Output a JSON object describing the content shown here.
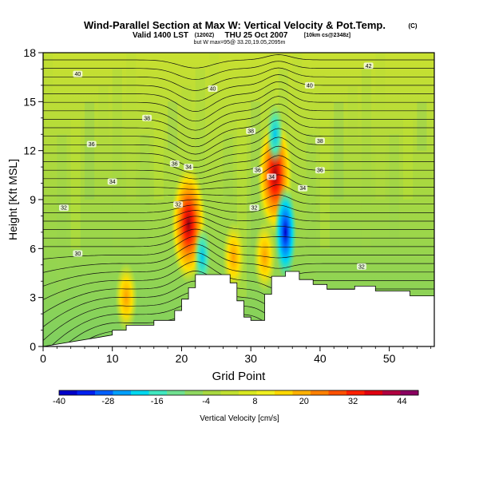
{
  "header": {
    "title": "Wind-Parallel Section at Max W: Vertical Velocity & Pot.Temp.",
    "title_mark": "(C)",
    "valid_line": "Valid 1400 LST",
    "valid_utc": "(1200Z)",
    "valid_date": "THU 25 Oct 2007",
    "valid_run": "[10km cs@2348z]",
    "sub_line": "but W max=95@ 33.20,19.05,2095m"
  },
  "chart_data": {
    "type": "heatmap",
    "xlabel": "Grid Point",
    "ylabel": "Height [Kft MSL]",
    "xlim": [
      0,
      56.5
    ],
    "ylim": [
      0,
      18
    ],
    "xticks": [
      0,
      10,
      20,
      30,
      40,
      50
    ],
    "yticks": [
      0,
      3,
      6,
      9,
      12,
      15,
      18
    ],
    "colorbar": {
      "label": "Vertical Velocity [cm/s]",
      "range": [
        -40,
        48
      ],
      "tick_values": [
        -40,
        -28,
        -16,
        -4,
        8,
        20,
        32,
        44
      ],
      "tick_labels": [
        "-40",
        "-28",
        "-16",
        "-4",
        "8",
        "20",
        "32",
        "44"
      ],
      "colors": [
        "#0000c8",
        "#0020f0",
        "#0060ff",
        "#00a0ff",
        "#00d8f0",
        "#40e8c0",
        "#70e090",
        "#90d860",
        "#a8d840",
        "#c0e030",
        "#d8e820",
        "#f0f020",
        "#ffd800",
        "#ffb000",
        "#ff8000",
        "#ff5000",
        "#ff2000",
        "#e00010",
        "#b00040",
        "#8a0060"
      ]
    },
    "terrain": [
      [
        0,
        0
      ],
      [
        10,
        0.7
      ],
      [
        10,
        1
      ],
      [
        12,
        1
      ],
      [
        12,
        1.3
      ],
      [
        16,
        1.3
      ],
      [
        16,
        1.6
      ],
      [
        19,
        1.6
      ],
      [
        19,
        2.2
      ],
      [
        20,
        2.2
      ],
      [
        20,
        2.9
      ],
      [
        21,
        2.9
      ],
      [
        21,
        3.6
      ],
      [
        22,
        3.6
      ],
      [
        22,
        4.4
      ],
      [
        27,
        4.4
      ],
      [
        27,
        3.9
      ],
      [
        28,
        3.9
      ],
      [
        28,
        2.8
      ],
      [
        29,
        2.8
      ],
      [
        29,
        1.8
      ],
      [
        30,
        1.8
      ],
      [
        30,
        1.6
      ],
      [
        32,
        1.6
      ],
      [
        32,
        3.2
      ],
      [
        33,
        3.2
      ],
      [
        33,
        4.3
      ],
      [
        35,
        4.3
      ],
      [
        35,
        4.6
      ],
      [
        37,
        4.6
      ],
      [
        37,
        4.1
      ],
      [
        39,
        4.1
      ],
      [
        39,
        3.8
      ],
      [
        41,
        3.8
      ],
      [
        41,
        3.5
      ],
      [
        45,
        3.5
      ],
      [
        45,
        3.7
      ],
      [
        48,
        3.7
      ],
      [
        48,
        3.4
      ],
      [
        53,
        3.4
      ],
      [
        53,
        3.1
      ],
      [
        56.5,
        3.1
      ]
    ],
    "updrafts": [
      {
        "x": 21,
        "y": 7.5,
        "value": 44
      },
      {
        "x": 32,
        "y": 5.5,
        "value": 20
      },
      {
        "x": 33.5,
        "y": 10.5,
        "value": 32
      },
      {
        "x": 12,
        "y": 3,
        "value": 20
      },
      {
        "x": 27.5,
        "y": 5.5,
        "value": 14
      }
    ],
    "downdrafts": [
      {
        "x": 35,
        "y": 7,
        "value": -40
      },
      {
        "x": 23,
        "y": 5.5,
        "value": -16
      },
      {
        "x": 33.5,
        "y": 13,
        "value": -10
      }
    ],
    "isentropes": [
      {
        "label": "42",
        "x": 47,
        "y": 17.2
      },
      {
        "label": "40",
        "x": 5,
        "y": 16.7
      },
      {
        "label": "40",
        "x": 24.5,
        "y": 15.8
      },
      {
        "label": "40",
        "x": 38.5,
        "y": 16
      },
      {
        "label": "38",
        "x": 15,
        "y": 14
      },
      {
        "label": "38",
        "x": 30,
        "y": 13.2
      },
      {
        "label": "38",
        "x": 40,
        "y": 12.6
      },
      {
        "label": "36",
        "x": 7,
        "y": 12.4
      },
      {
        "label": "36",
        "x": 19,
        "y": 11.2
      },
      {
        "label": "36",
        "x": 31,
        "y": 10.8
      },
      {
        "label": "36",
        "x": 40,
        "y": 10.8
      },
      {
        "label": "34",
        "x": 10,
        "y": 10.1
      },
      {
        "label": "34",
        "x": 21,
        "y": 11
      },
      {
        "label": "34",
        "x": 33,
        "y": 10.4
      },
      {
        "label": "34",
        "x": 37.5,
        "y": 9.7
      },
      {
        "label": "32",
        "x": 3,
        "y": 8.5
      },
      {
        "label": "32",
        "x": 19.5,
        "y": 8.7
      },
      {
        "label": "32",
        "x": 30.5,
        "y": 8.5
      },
      {
        "label": "30",
        "x": 5,
        "y": 5.7
      },
      {
        "label": "32",
        "x": 46,
        "y": 4.9
      }
    ]
  }
}
